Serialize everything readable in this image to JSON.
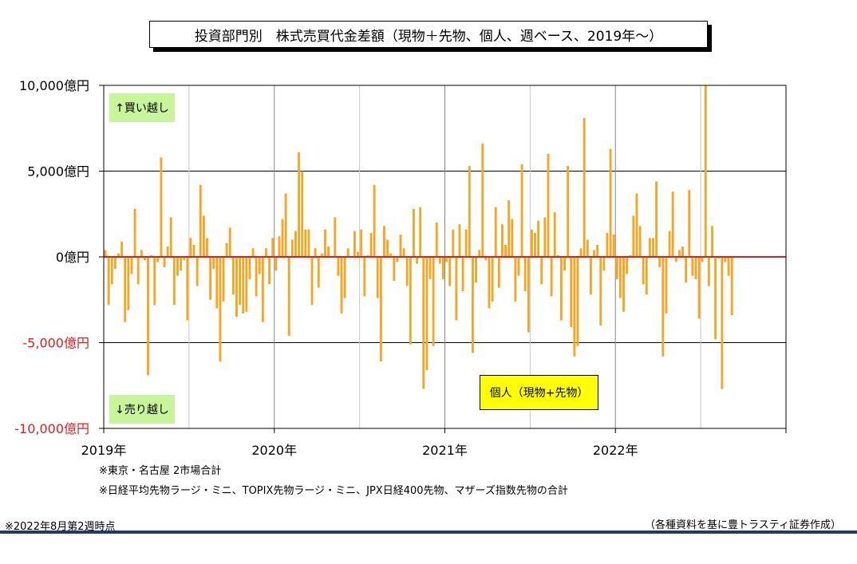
{
  "title": "投資部門別　株式売買代金差額（現物＋先物、個人、週ベース、2019年～）",
  "labels": {
    "buy": "↑買い越し",
    "sell": "↓売り越し",
    "series_box": "個人（現物+先物）"
  },
  "notes": {
    "note1": "※東京・名古屋 2市場合計",
    "note2": "※日経平均先物ラージ・ミニ、TOPIX先物ラージ・ミニ、JPX日経400先物、マザーズ指数先物の合計",
    "as_of": "※2022年8月第2週時点",
    "source": "（各種資料を基に豊トラスティ証券作成）"
  },
  "colors": {
    "bar": "#f5a623",
    "zero_line": "#e02020",
    "negative_tick": "#e02020",
    "label_bg": "#c8f59a",
    "series_box_bg": "#ffff00"
  },
  "chart_data": {
    "type": "bar",
    "title": "投資部門別　株式売買代金差額（現物＋先物、個人、週ベース、2019年～）",
    "unit": "億円",
    "ylim": [
      -10000,
      10000
    ],
    "y_ticks": [
      "10,000億円",
      "5,000億円",
      "0億円",
      "-5,000億円",
      "-10,000億円"
    ],
    "y_tick_values": [
      10000,
      5000,
      0,
      -5000,
      -10000
    ],
    "x_ticks": [
      "2019年",
      "2020年",
      "2021年",
      "2022年"
    ],
    "grid": true,
    "series": [
      {
        "name": "個人（現物+先物）",
        "values": [
          400,
          -2800,
          -1600,
          -700,
          200,
          900,
          -3800,
          -3100,
          -1000,
          2800,
          -1600,
          400,
          -200,
          -6900,
          100,
          -2800,
          -300,
          5800,
          -600,
          600,
          2300,
          -2800,
          -1100,
          -800,
          -200,
          -3700,
          1100,
          700,
          -1700,
          4200,
          2400,
          1100,
          -2500,
          -700,
          -3000,
          -6100,
          -2600,
          800,
          1700,
          -2200,
          -3500,
          -2800,
          -3300,
          -3200,
          -1300,
          500,
          -2300,
          -1000,
          -3800,
          500,
          -1600,
          1100,
          -800,
          1200,
          2200,
          3700,
          -4600,
          1000,
          1500,
          6100,
          5000,
          1600,
          1600,
          -2800,
          500,
          -1800,
          200,
          1600,
          600,
          0,
          2300,
          -1100,
          -3300,
          -2400,
          500,
          0,
          1500,
          300,
          1600,
          -2300,
          100,
          1400,
          4200,
          -2400,
          -6100,
          1800,
          1000,
          200,
          -1400,
          -300,
          1300,
          500,
          -1700,
          -5100,
          2800,
          -400,
          2900,
          -7700,
          -6600,
          -1300,
          -5200,
          2000,
          -400,
          -1300,
          -300,
          -1700,
          1600,
          -3700,
          1900,
          -2000,
          1600,
          5300,
          -5600,
          -1500,
          400,
          6600,
          -200,
          -3000,
          -2600,
          2900,
          -1800,
          1900,
          700,
          3300,
          2200,
          -2600,
          -1100,
          5400,
          -2000,
          -4400,
          1600,
          1400,
          2100,
          -1600,
          2300,
          6000,
          -2300,
          2600,
          100,
          -3700,
          -800,
          5300,
          -4100,
          -5800,
          -5200,
          500,
          8100,
          1000,
          -2200,
          400,
          700,
          -4000,
          -800,
          1400,
          6300,
          1300,
          -1300,
          -2400,
          -3200,
          -1000,
          100,
          2400,
          3700,
          1800,
          -1600,
          -2200,
          1100,
          1100,
          4400,
          -600,
          -5800,
          -3300,
          1500,
          3800,
          -300,
          400,
          600,
          -1500,
          3900,
          -1100,
          -1300,
          -3600,
          -300,
          10000,
          -1700,
          1800,
          -4800,
          -100,
          -7700,
          -300,
          -1100,
          -3400
        ]
      }
    ]
  }
}
